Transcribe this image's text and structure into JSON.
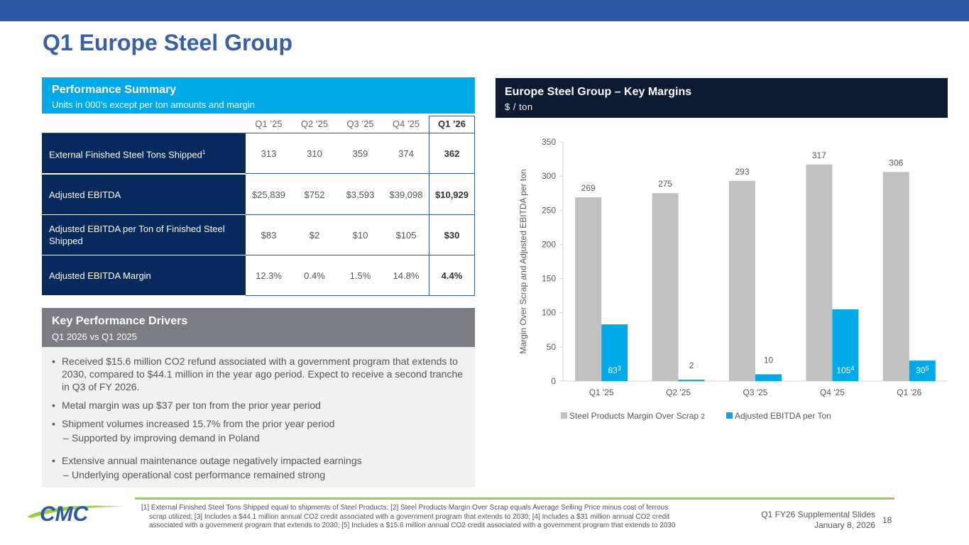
{
  "page": {
    "title": "Q1 Europe Steel Group"
  },
  "performance_summary": {
    "title": "Performance Summary",
    "subtitle": "Units in 000’s except per ton amounts and margin",
    "columns": [
      "Q1 ’25",
      "Q2 ’25",
      "Q3 ’25",
      "Q4 ’25",
      "Q1 ’26"
    ],
    "rows": [
      {
        "label": "External Finished Steel Tons Shipped",
        "sup": "1",
        "values": [
          "313",
          "310",
          "359",
          "374",
          "362"
        ]
      },
      {
        "label": "Adjusted EBITDA",
        "sup": "",
        "values": [
          "$25,839",
          "$752",
          "$3,593",
          "$39,098",
          "$10,929"
        ]
      },
      {
        "label": "Adjusted EBITDA per Ton of Finished Steel Shipped",
        "sup": "",
        "values": [
          "$83",
          "$2",
          "$10",
          "$105",
          "$30"
        ]
      },
      {
        "label": "Adjusted EBITDA Margin",
        "sup": "",
        "values": [
          "12.3%",
          "0.4%",
          "1.5%",
          "14.8%",
          "4.4%"
        ]
      }
    ]
  },
  "key_drivers": {
    "title": "Key Performance Drivers",
    "subtitle": "Q1 2026 vs Q1 2025",
    "bullets": [
      "Received $15.6 million CO2 refund associated with a government program that extends to 2030, compared to $44.1 million in the year ago period.  Expect to receive a second tranche in Q3 of FY 2026.",
      "Metal margin was up $37 per ton from the prior year period",
      "Shipment volumes increased 15.7% from the prior year period",
      "Extensive annual maintenance outage negatively impacted earnings"
    ],
    "subs": [
      "Supported by improving demand in Poland",
      "Underlying operational cost performance remained strong"
    ]
  },
  "chart_header": {
    "title": "Europe Steel Group – Key Margins",
    "subtitle": "$ / ton"
  },
  "chart_data": {
    "type": "bar",
    "categories": [
      "Q1 '25",
      "Q2 '25",
      "Q3 '25",
      "Q4 '25",
      "Q1 '26"
    ],
    "series": [
      {
        "name": "Steel Products Margin Over Scrap",
        "name_sup": "2",
        "values": [
          269,
          275,
          293,
          317,
          306
        ],
        "color": "#c0c0c0"
      },
      {
        "name": "Adjusted EBITDA per Ton",
        "name_sup": "",
        "values": [
          83,
          2,
          10,
          105,
          30
        ],
        "color": "#00a9e8",
        "label_sups": [
          "3",
          "",
          "",
          "4",
          "5"
        ]
      }
    ],
    "ylabel": "Margin Over Scrap and Adjusted EBITDA per ton",
    "ylim": [
      0,
      350
    ],
    "yticks": [
      0,
      50,
      100,
      150,
      200,
      250,
      300,
      350
    ],
    "grid": false,
    "legend": "bottom"
  },
  "footer": {
    "note_line1": "[1] External Finished Steel Tons Shipped equal to shipments of Steel Products; [2] Steel Products Margin Over Scrap equals Average Selling Price minus cost of ferrous",
    "note_line2": "scrap utilized; [3] Includes a $44.1 million annual CO2 credit associated with a government program that extends to 2030; [4] Includes a $31 million annual CO2 credit",
    "note_line3": "associated with a government program that extends to 2030; [5] Includes a $15.6 million annual CO2 credit associated with a government program that extends to 2030",
    "deck": "Q1 FY26 Supplemental Slides",
    "date": "January 8, 2026",
    "page_number": "18",
    "logo_text": "CMC",
    "colors": {
      "accent_green": "#9ccf3b",
      "brand_blue": "#2e58a6"
    }
  }
}
